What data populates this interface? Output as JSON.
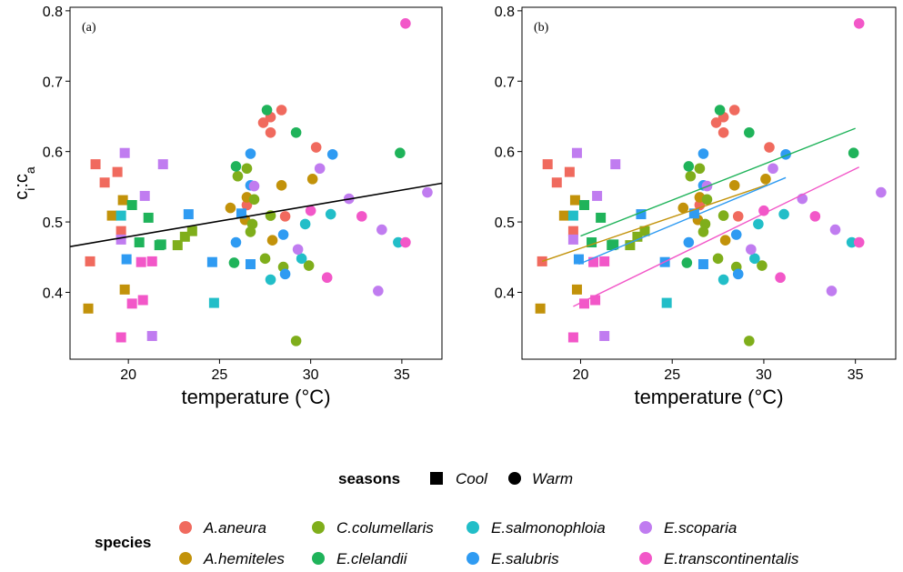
{
  "chart_data": {
    "type": "scatter",
    "xlabel": "temperature (°C)",
    "ylabel": {
      "base": "c",
      "sub1": "i",
      "sep": ":",
      "sub2": "a"
    },
    "xlim": [
      16.8,
      37.2
    ],
    "ylim": [
      0.305,
      0.805
    ],
    "xticks": [
      20,
      25,
      30,
      35
    ],
    "yticks": [
      0.4,
      0.5,
      0.6,
      0.7,
      0.8
    ],
    "grid": false,
    "legend": {
      "seasons": {
        "title": "seasons",
        "items": [
          {
            "name": "Cool",
            "shape": "square"
          },
          {
            "name": "Warm",
            "shape": "circle"
          }
        ]
      },
      "species": {
        "title": "species",
        "items": [
          {
            "name": "A.aneura",
            "color": "#F06A5E"
          },
          {
            "name": "A.hemiteles",
            "color": "#C2920A"
          },
          {
            "name": "C.columellaris",
            "color": "#7FAE1B"
          },
          {
            "name": "E.clelandii",
            "color": "#1FB35A"
          },
          {
            "name": "E.salmonophloia",
            "color": "#22BEC8"
          },
          {
            "name": "E.salubris",
            "color": "#2F9BF2"
          },
          {
            "name": "E.scoparia",
            "color": "#C07CF0"
          },
          {
            "name": "E.transcontinentalis",
            "color": "#F257C8"
          }
        ]
      }
    },
    "points": [
      {
        "species": "A.aneura",
        "season": "Cool",
        "x": 18.2,
        "y": 0.582
      },
      {
        "species": "A.aneura",
        "season": "Cool",
        "x": 18.7,
        "y": 0.556
      },
      {
        "species": "A.aneura",
        "season": "Cool",
        "x": 19.4,
        "y": 0.571
      },
      {
        "species": "A.aneura",
        "season": "Cool",
        "x": 19.6,
        "y": 0.487
      },
      {
        "species": "A.aneura",
        "season": "Cool",
        "x": 17.9,
        "y": 0.444
      },
      {
        "species": "A.aneura",
        "season": "Warm",
        "x": 27.4,
        "y": 0.641
      },
      {
        "species": "A.aneura",
        "season": "Warm",
        "x": 27.8,
        "y": 0.649
      },
      {
        "species": "A.aneura",
        "season": "Warm",
        "x": 28.4,
        "y": 0.659
      },
      {
        "species": "A.aneura",
        "season": "Warm",
        "x": 27.8,
        "y": 0.627
      },
      {
        "species": "A.aneura",
        "season": "Warm",
        "x": 30.3,
        "y": 0.606
      },
      {
        "species": "A.aneura",
        "season": "Warm",
        "x": 26.5,
        "y": 0.524
      },
      {
        "species": "A.aneura",
        "season": "Warm",
        "x": 28.6,
        "y": 0.508
      },
      {
        "species": "A.hemiteles",
        "season": "Cool",
        "x": 19.1,
        "y": 0.509
      },
      {
        "species": "A.hemiteles",
        "season": "Cool",
        "x": 19.7,
        "y": 0.531
      },
      {
        "species": "A.hemiteles",
        "season": "Cool",
        "x": 19.8,
        "y": 0.404
      },
      {
        "species": "A.hemiteles",
        "season": "Cool",
        "x": 17.8,
        "y": 0.377
      },
      {
        "species": "A.hemiteles",
        "season": "Warm",
        "x": 25.6,
        "y": 0.52
      },
      {
        "species": "A.hemiteles",
        "season": "Warm",
        "x": 26.5,
        "y": 0.535
      },
      {
        "species": "A.hemiteles",
        "season": "Warm",
        "x": 26.4,
        "y": 0.503
      },
      {
        "species": "A.hemiteles",
        "season": "Warm",
        "x": 27.9,
        "y": 0.474
      },
      {
        "species": "A.hemiteles",
        "season": "Warm",
        "x": 28.4,
        "y": 0.552
      },
      {
        "species": "A.hemiteles",
        "season": "Warm",
        "x": 30.1,
        "y": 0.561
      },
      {
        "species": "C.columellaris",
        "season": "Cool",
        "x": 22.7,
        "y": 0.467
      },
      {
        "species": "C.columellaris",
        "season": "Cool",
        "x": 23.1,
        "y": 0.479
      },
      {
        "species": "C.columellaris",
        "season": "Cool",
        "x": 23.5,
        "y": 0.487
      },
      {
        "species": "C.columellaris",
        "season": "Warm",
        "x": 26.0,
        "y": 0.565
      },
      {
        "species": "C.columellaris",
        "season": "Warm",
        "x": 26.5,
        "y": 0.576
      },
      {
        "species": "C.columellaris",
        "season": "Warm",
        "x": 26.9,
        "y": 0.532
      },
      {
        "species": "C.columellaris",
        "season": "Warm",
        "x": 26.8,
        "y": 0.497
      },
      {
        "species": "C.columellaris",
        "season": "Warm",
        "x": 26.7,
        "y": 0.486
      },
      {
        "species": "C.columellaris",
        "season": "Warm",
        "x": 27.8,
        "y": 0.509
      },
      {
        "species": "C.columellaris",
        "season": "Warm",
        "x": 27.5,
        "y": 0.448
      },
      {
        "species": "C.columellaris",
        "season": "Warm",
        "x": 28.5,
        "y": 0.436
      },
      {
        "species": "C.columellaris",
        "season": "Warm",
        "x": 29.9,
        "y": 0.438
      },
      {
        "species": "C.columellaris",
        "season": "Warm",
        "x": 29.2,
        "y": 0.331
      },
      {
        "species": "E.clelandii",
        "season": "Cool",
        "x": 20.2,
        "y": 0.524
      },
      {
        "species": "E.clelandii",
        "season": "Cool",
        "x": 20.6,
        "y": 0.471
      },
      {
        "species": "E.clelandii",
        "season": "Cool",
        "x": 21.1,
        "y": 0.506
      },
      {
        "species": "E.clelandii",
        "season": "Cool",
        "x": 21.7,
        "y": 0.467
      },
      {
        "species": "E.clelandii",
        "season": "Cool",
        "x": 21.8,
        "y": 0.468
      },
      {
        "species": "E.clelandii",
        "season": "Warm",
        "x": 27.6,
        "y": 0.659
      },
      {
        "species": "E.clelandii",
        "season": "Warm",
        "x": 29.2,
        "y": 0.627
      },
      {
        "species": "E.clelandii",
        "season": "Warm",
        "x": 25.9,
        "y": 0.579
      },
      {
        "species": "E.clelandii",
        "season": "Warm",
        "x": 25.8,
        "y": 0.442
      },
      {
        "species": "E.clelandii",
        "season": "Warm",
        "x": 34.9,
        "y": 0.598
      },
      {
        "species": "E.salmonophloia",
        "season": "Cool",
        "x": 19.6,
        "y": 0.509
      },
      {
        "species": "E.salmonophloia",
        "season": "Cool",
        "x": 24.7,
        "y": 0.385
      },
      {
        "species": "E.salmonophloia",
        "season": "Warm",
        "x": 27.8,
        "y": 0.418
      },
      {
        "species": "E.salmonophloia",
        "season": "Warm",
        "x": 29.5,
        "y": 0.448
      },
      {
        "species": "E.salmonophloia",
        "season": "Warm",
        "x": 29.7,
        "y": 0.497
      },
      {
        "species": "E.salmonophloia",
        "season": "Warm",
        "x": 31.1,
        "y": 0.511
      },
      {
        "species": "E.salmonophloia",
        "season": "Warm",
        "x": 34.8,
        "y": 0.471
      },
      {
        "species": "E.salubris",
        "season": "Cool",
        "x": 19.9,
        "y": 0.447
      },
      {
        "species": "E.salubris",
        "season": "Cool",
        "x": 23.3,
        "y": 0.511
      },
      {
        "species": "E.salubris",
        "season": "Cool",
        "x": 24.6,
        "y": 0.443
      },
      {
        "species": "E.salubris",
        "season": "Cool",
        "x": 26.7,
        "y": 0.44
      },
      {
        "species": "E.salubris",
        "season": "Cool",
        "x": 26.2,
        "y": 0.512
      },
      {
        "species": "E.salubris",
        "season": "Warm",
        "x": 26.7,
        "y": 0.597
      },
      {
        "species": "E.salubris",
        "season": "Warm",
        "x": 26.7,
        "y": 0.552
      },
      {
        "species": "E.salubris",
        "season": "Warm",
        "x": 25.9,
        "y": 0.471
      },
      {
        "species": "E.salubris",
        "season": "Warm",
        "x": 28.5,
        "y": 0.482
      },
      {
        "species": "E.salubris",
        "season": "Warm",
        "x": 28.6,
        "y": 0.426
      },
      {
        "species": "E.salubris",
        "season": "Warm",
        "x": 31.2,
        "y": 0.596
      },
      {
        "species": "E.scoparia",
        "season": "Cool",
        "x": 19.8,
        "y": 0.598
      },
      {
        "species": "E.scoparia",
        "season": "Cool",
        "x": 21.9,
        "y": 0.582
      },
      {
        "species": "E.scoparia",
        "season": "Cool",
        "x": 20.9,
        "y": 0.537
      },
      {
        "species": "E.scoparia",
        "season": "Cool",
        "x": 19.6,
        "y": 0.475
      },
      {
        "species": "E.scoparia",
        "season": "Cool",
        "x": 21.3,
        "y": 0.338
      },
      {
        "species": "E.scoparia",
        "season": "Warm",
        "x": 26.9,
        "y": 0.551
      },
      {
        "species": "E.scoparia",
        "season": "Warm",
        "x": 30.5,
        "y": 0.576
      },
      {
        "species": "E.scoparia",
        "season": "Warm",
        "x": 32.1,
        "y": 0.533
      },
      {
        "species": "E.scoparia",
        "season": "Warm",
        "x": 29.3,
        "y": 0.461
      },
      {
        "species": "E.scoparia",
        "season": "Warm",
        "x": 33.9,
        "y": 0.489
      },
      {
        "species": "E.scoparia",
        "season": "Warm",
        "x": 33.7,
        "y": 0.402
      },
      {
        "species": "E.scoparia",
        "season": "Warm",
        "x": 36.4,
        "y": 0.542
      },
      {
        "species": "E.transcontinentalis",
        "season": "Cool",
        "x": 20.7,
        "y": 0.443
      },
      {
        "species": "E.transcontinentalis",
        "season": "Cool",
        "x": 21.3,
        "y": 0.444
      },
      {
        "species": "E.transcontinentalis",
        "season": "Cool",
        "x": 20.2,
        "y": 0.384
      },
      {
        "species": "E.transcontinentalis",
        "season": "Cool",
        "x": 20.8,
        "y": 0.389
      },
      {
        "species": "E.transcontinentalis",
        "season": "Cool",
        "x": 19.6,
        "y": 0.336
      },
      {
        "species": "E.transcontinentalis",
        "season": "Warm",
        "x": 30.0,
        "y": 0.516
      },
      {
        "species": "E.transcontinentalis",
        "season": "Warm",
        "x": 30.9,
        "y": 0.421
      },
      {
        "species": "E.transcontinentalis",
        "season": "Warm",
        "x": 32.8,
        "y": 0.508
      },
      {
        "species": "E.transcontinentalis",
        "season": "Warm",
        "x": 35.2,
        "y": 0.471
      },
      {
        "species": "E.transcontinentalis",
        "season": "Warm",
        "x": 35.2,
        "y": 0.782
      }
    ],
    "panels": [
      {
        "tag": "(a)",
        "lines": [
          {
            "color": "#000000",
            "x": [
              16.8,
              37.2
            ],
            "y": [
              0.465,
              0.555
            ]
          }
        ]
      },
      {
        "tag": "(b)",
        "lines": [
          {
            "species": "A.hemiteles",
            "color": "#C2920A",
            "x": [
              17.9,
              30.2
            ],
            "y": [
              0.444,
              0.553
            ]
          },
          {
            "species": "E.clelandii",
            "color": "#1FB35A",
            "x": [
              20.0,
              35.0
            ],
            "y": [
              0.48,
              0.633
            ]
          },
          {
            "species": "E.salubris",
            "color": "#2F9BF2",
            "x": [
              19.9,
              31.2
            ],
            "y": [
              0.44,
              0.563
            ]
          },
          {
            "species": "E.transcontinentalis",
            "color": "#F257C8",
            "x": [
              19.6,
              35.2
            ],
            "y": [
              0.38,
              0.578
            ]
          }
        ]
      }
    ]
  }
}
